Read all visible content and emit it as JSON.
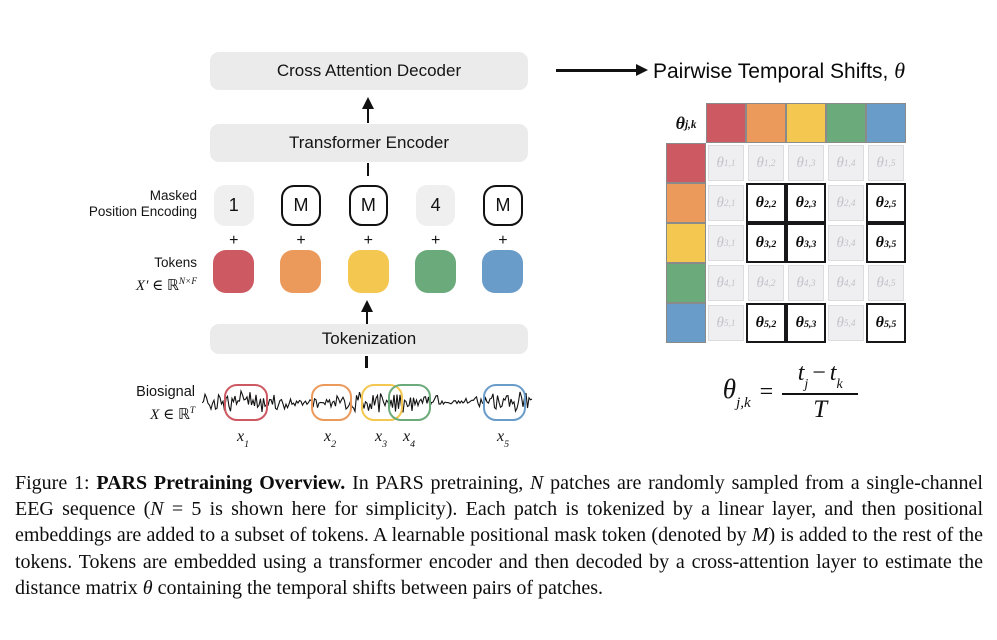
{
  "pipeline": {
    "decoder_label": "Cross Attention Decoder",
    "encoder_label": "Transformer Encoder",
    "tokenization_label": "Tokenization",
    "masked_pos_line1": "Masked",
    "masked_pos_line2": "Position Encoding",
    "plus_sign": "+",
    "tokens_label": "Tokens",
    "tokens_math_base": "X′ ∈ ℝ",
    "tokens_math_sup": "N×F",
    "position_tokens": [
      {
        "label": "1",
        "masked": false
      },
      {
        "label": "M",
        "masked": true
      },
      {
        "label": "M",
        "masked": true
      },
      {
        "label": "4",
        "masked": false
      },
      {
        "label": "M",
        "masked": true
      }
    ],
    "token_colors": [
      "#cd5a62",
      "#eb9a5c",
      "#f4c751",
      "#6baa7a",
      "#6a9cca"
    ]
  },
  "biosignal": {
    "label": "Biosignal",
    "math_base": "X ∈ ℝ",
    "math_sup": "T",
    "patch_base": "x",
    "patches": [
      {
        "sub": "1",
        "color": "#cd5a62"
      },
      {
        "sub": "2",
        "color": "#eb9a5c"
      },
      {
        "sub": "3",
        "color": "#f4c751"
      },
      {
        "sub": "4",
        "color": "#6baa7a"
      },
      {
        "sub": "5",
        "color": "#6a9cca"
      }
    ]
  },
  "shifts": {
    "title_text": "Pairwise Temporal Shifts, ",
    "title_theta": "θ",
    "corner_base": "θ",
    "corner_sub": "j,k",
    "cell_base": "θ",
    "colors": [
      "#cd5a62",
      "#eb9a5c",
      "#f4c751",
      "#6baa7a",
      "#6a9cca"
    ],
    "rows": [
      [
        {
          "sub": "1,1",
          "active": false
        },
        {
          "sub": "1,2",
          "active": false
        },
        {
          "sub": "1,3",
          "active": false
        },
        {
          "sub": "1,4",
          "active": false
        },
        {
          "sub": "1,5",
          "active": false
        }
      ],
      [
        {
          "sub": "2,1",
          "active": false
        },
        {
          "sub": "2,2",
          "active": true
        },
        {
          "sub": "2,3",
          "active": true
        },
        {
          "sub": "2,4",
          "active": false
        },
        {
          "sub": "2,5",
          "active": true
        }
      ],
      [
        {
          "sub": "3,1",
          "active": false
        },
        {
          "sub": "3,2",
          "active": true
        },
        {
          "sub": "3,3",
          "active": true
        },
        {
          "sub": "3,4",
          "active": false
        },
        {
          "sub": "3,5",
          "active": true
        }
      ],
      [
        {
          "sub": "4,1",
          "active": false
        },
        {
          "sub": "4,2",
          "active": false
        },
        {
          "sub": "4,3",
          "active": false
        },
        {
          "sub": "4,4",
          "active": false
        },
        {
          "sub": "4,5",
          "active": false
        }
      ],
      [
        {
          "sub": "5,1",
          "active": false
        },
        {
          "sub": "5,2",
          "active": true
        },
        {
          "sub": "5,3",
          "active": true
        },
        {
          "sub": "5,4",
          "active": false
        },
        {
          "sub": "5,5",
          "active": true
        }
      ]
    ]
  },
  "formula": {
    "lhs_base": "θ",
    "lhs_sub": "j,k",
    "equals": "=",
    "num_t1_base": "t",
    "num_t1_sub": "j",
    "minus": "−",
    "num_t2_base": "t",
    "num_t2_sub": "k",
    "den": "T"
  },
  "caption": {
    "segments": [
      {
        "text": "Figure 1: "
      },
      {
        "text": "PARS Pretraining Overview.",
        "bold": true
      },
      {
        "text": " In PARS pretraining, "
      },
      {
        "text": "N",
        "italic": true
      },
      {
        "text": " patches are randomly sampled from a single-channel EEG sequence ("
      },
      {
        "text": "N",
        "italic": true
      },
      {
        "text": " = 5 is shown here for simplicity). Each patch is tokenized by a linear layer, and then positional embeddings are added to a subset of tokens. A learnable positional mask token (denoted by "
      },
      {
        "text": "M",
        "italic": true
      },
      {
        "text": ") is added to the rest of the tokens. Tokens are embedded using a transformer encoder and then decoded by a cross-attention layer to estimate the distance matrix "
      },
      {
        "text": "θ",
        "italic": true
      },
      {
        "text": " containing the temporal shifts between pairs of patches."
      }
    ]
  }
}
